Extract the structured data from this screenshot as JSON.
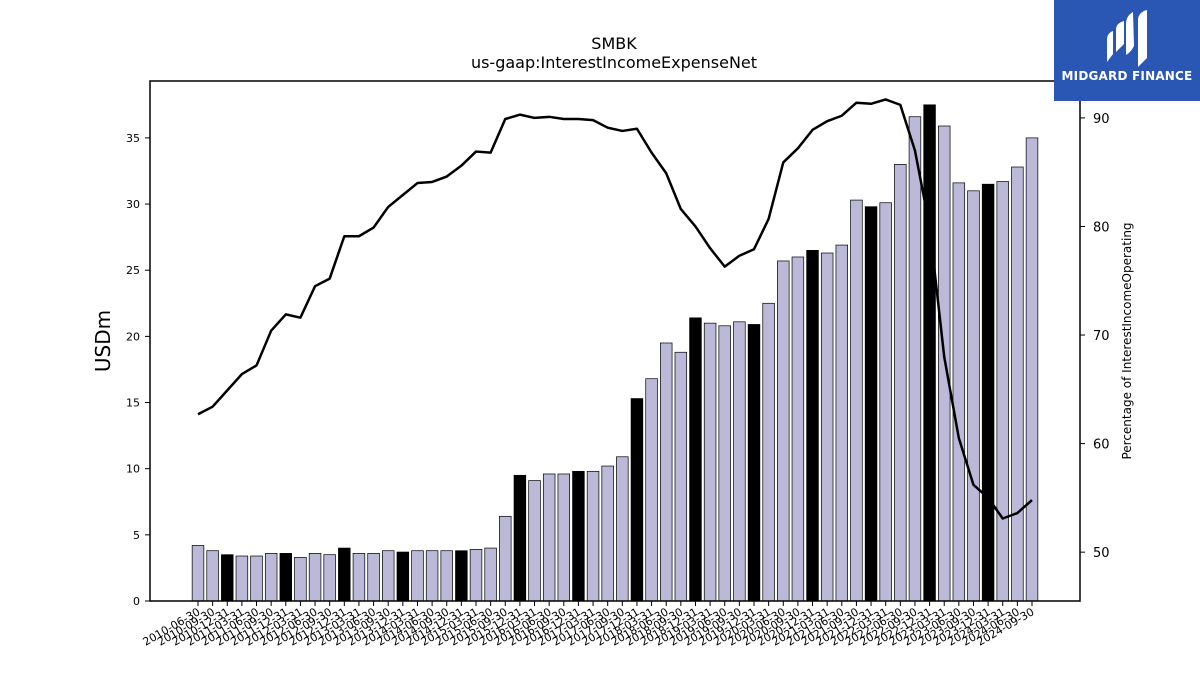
{
  "chart_data": {
    "type": "bar",
    "title": "SMBK",
    "subtitle": "us-gaap:InterestIncomeExpenseNet",
    "ylabel": "USDm",
    "y2label": "Percentage of InterestIncomeOperating",
    "ylim": [
      0,
      39.3
    ],
    "y2lim": [
      45.5,
      93.4
    ],
    "yticks": [
      0,
      5,
      10,
      15,
      20,
      25,
      30,
      35
    ],
    "y2ticks": [
      50,
      60,
      70,
      80,
      90
    ],
    "categories": [
      "2010-06-30",
      "2010-09-30",
      "2010-12-31",
      "2011-03-31",
      "2011-06-30",
      "2011-09-30",
      "2011-12-31",
      "2012-03-31",
      "2012-06-30",
      "2012-09-30",
      "2012-12-31",
      "2013-03-31",
      "2013-06-30",
      "2013-09-30",
      "2013-12-31",
      "2014-03-31",
      "2014-06-30",
      "2014-09-30",
      "2014-12-31",
      "2015-03-31",
      "2015-06-30",
      "2015-09-30",
      "2015-12-31",
      "2016-03-31",
      "2016-06-30",
      "2016-09-30",
      "2016-12-31",
      "2017-03-31",
      "2017-06-30",
      "2017-09-30",
      "2017-12-31",
      "2018-03-31",
      "2018-06-30",
      "2018-09-30",
      "2018-12-31",
      "2019-03-31",
      "2019-06-30",
      "2019-09-30",
      "2019-12-31",
      "2020-03-31",
      "2020-06-30",
      "2020-09-30",
      "2020-12-31",
      "2021-03-31",
      "2021-06-30",
      "2021-09-30",
      "2021-12-31",
      "2022-03-31",
      "2022-06-30",
      "2022-09-30",
      "2022-12-31",
      "2023-03-31",
      "2023-06-30",
      "2023-09-30",
      "2023-12-31",
      "2024-03-31",
      "2024-06-30",
      "2024-09-30"
    ],
    "series": [
      {
        "type": "bar",
        "values": [
          4.2,
          3.8,
          3.5,
          3.4,
          3.4,
          3.6,
          3.6,
          3.3,
          3.6,
          3.5,
          4.0,
          3.6,
          3.6,
          3.8,
          3.7,
          3.8,
          3.8,
          3.8,
          3.8,
          3.9,
          4.0,
          6.4,
          9.5,
          9.1,
          9.6,
          9.6,
          9.8,
          9.8,
          10.2,
          10.9,
          15.3,
          16.8,
          19.5,
          18.8,
          21.4,
          21.0,
          20.8,
          21.1,
          20.9,
          22.5,
          25.7,
          26.0,
          26.5,
          26.3,
          26.9,
          30.3,
          29.8,
          30.1,
          33.0,
          36.6,
          37.5,
          35.9,
          31.6,
          31.0,
          31.5,
          31.7,
          32.8,
          35.0
        ],
        "highlight_q4": true,
        "fill": "#bcb8d8",
        "highlight_fill": "#000000"
      },
      {
        "type": "line",
        "axis": "right",
        "values": [
          62.7,
          63.4,
          64.9,
          66.4,
          67.2,
          70.4,
          71.9,
          71.6,
          74.5,
          75.2,
          79.1,
          79.1,
          79.9,
          81.8,
          82.9,
          84.0,
          84.1,
          84.6,
          85.6,
          86.9,
          86.8,
          89.9,
          90.3,
          90.0,
          90.1,
          89.9,
          89.9,
          89.8,
          89.1,
          88.8,
          89.0,
          86.8,
          84.9,
          81.6,
          80.0,
          78.0,
          76.3,
          77.3,
          77.9,
          80.7,
          85.9,
          87.2,
          88.9,
          89.7,
          90.2,
          91.4,
          91.3,
          91.7,
          91.2,
          87.0,
          80.0,
          68.0,
          60.5,
          56.2,
          55.0,
          53.1,
          53.6,
          54.8
        ],
        "color": "#000000"
      }
    ],
    "grid": false
  },
  "logo": {
    "text": "MIDGARD FINANCE",
    "color": "#2b57b4"
  }
}
